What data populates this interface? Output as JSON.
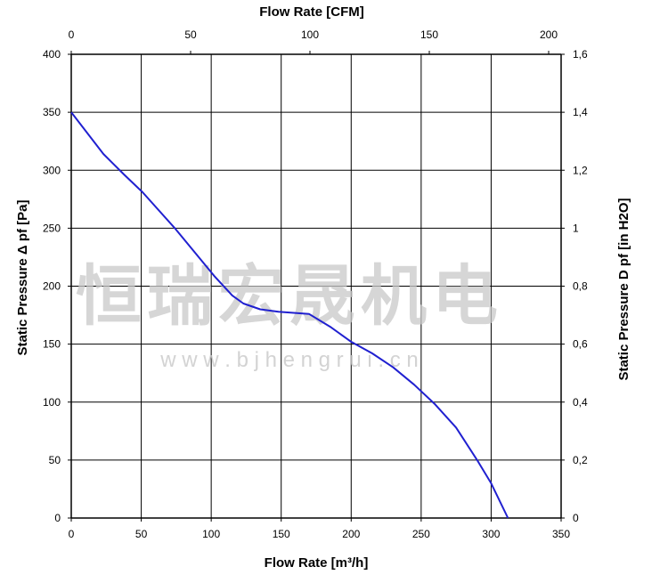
{
  "chart_data": {
    "type": "line",
    "title": "",
    "xlabel": "Flow Rate [m³/h]",
    "x2label": "Flow Rate [CFM]",
    "ylabel": "Static Pressure Δ pf [Pa]",
    "y2label": "Static Pressure D pf [in H2O]",
    "xlim": [
      0,
      350
    ],
    "x2lim": [
      0,
      200
    ],
    "ylim": [
      0,
      400
    ],
    "y2lim": [
      0,
      1.6
    ],
    "x_ticks": [
      "0",
      "50",
      "100",
      "150",
      "200",
      "250",
      "300",
      "350"
    ],
    "x2_ticks": [
      "0",
      "50",
      "100",
      "150",
      "200"
    ],
    "y_ticks": [
      "0",
      "50",
      "100",
      "150",
      "200",
      "250",
      "300",
      "350",
      "400"
    ],
    "y2_ticks": [
      "0",
      "0,2",
      "0,4",
      "0,6",
      "0,8",
      "1",
      "1,2",
      "1,4",
      "1,6"
    ],
    "grid": true,
    "series": [
      {
        "color": "#2020d0",
        "x": [
          0,
          23,
          38,
          51,
          74,
          102,
          115,
          123,
          135,
          148,
          170,
          185,
          200,
          215,
          230,
          245,
          260,
          275,
          290,
          300,
          312
        ],
        "y": [
          350,
          314,
          296,
          281,
          250,
          209,
          192,
          185,
          180,
          178,
          176,
          165,
          152,
          142,
          130,
          115,
          98,
          78,
          50,
          30,
          0
        ]
      }
    ],
    "watermark": {
      "line1": "恒瑞宏晟机电",
      "line2": "w w w . b j h e n g r u i . c n"
    }
  }
}
